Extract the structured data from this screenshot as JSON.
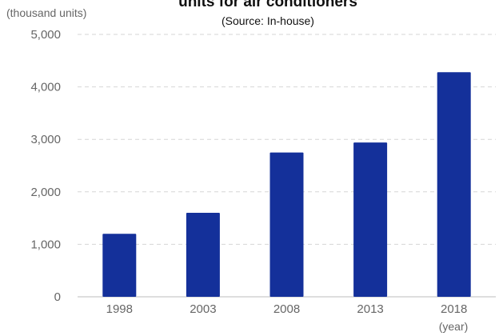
{
  "chart_data": {
    "type": "bar",
    "title": "units for air conditioners",
    "subtitle": "(Source: In-house)",
    "y_unit_label": "(thousand units)",
    "x_unit_label": "(year)",
    "categories": [
      "1998",
      "2003",
      "2008",
      "2013",
      "2018"
    ],
    "values": [
      1200,
      1600,
      2750,
      2940,
      4280
    ],
    "ylim": [
      0,
      5000
    ],
    "yticks": [
      0,
      1000,
      2000,
      3000,
      4000,
      5000
    ],
    "ytick_labels": [
      "0",
      "1,000",
      "2,000",
      "3,000",
      "4,000",
      "5,000"
    ],
    "grid": true,
    "legend": "none",
    "bar_color": "#14309a"
  }
}
